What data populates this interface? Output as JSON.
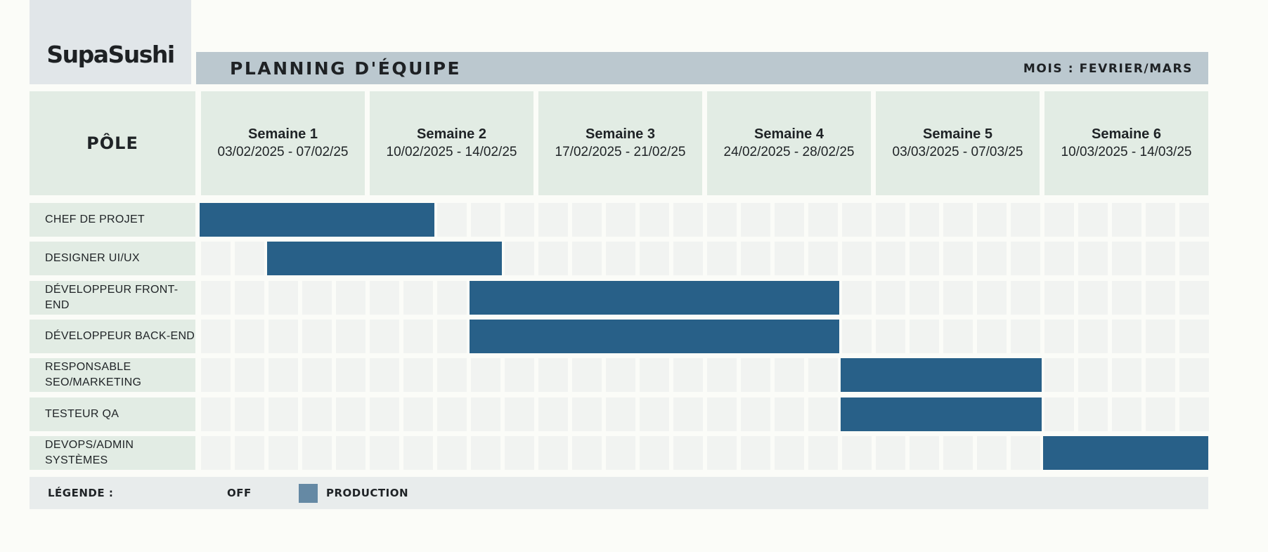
{
  "brand": {
    "logo": "SupaSushi"
  },
  "header": {
    "title": "PLANNING D'ÉQUIPE",
    "month": "MOIS : FEVRIER/MARS"
  },
  "table": {
    "pole_header": "PÔLE"
  },
  "colors": {
    "production": "#286088",
    "off": "#f1f3f1",
    "label_bg": "#e2ece4",
    "header_bar": "#bbc8cf"
  },
  "chart_data": {
    "type": "gantt",
    "categories": [
      "Semaine 1",
      "Semaine 2",
      "Semaine 3",
      "Semaine 4",
      "Semaine 5",
      "Semaine 6"
    ],
    "weeks": [
      {
        "name": "Semaine 1",
        "dates": "03/02/2025 - 07/02/25"
      },
      {
        "name": "Semaine 2",
        "dates": "10/02/2025 - 14/02/25"
      },
      {
        "name": "Semaine 3",
        "dates": "17/02/2025 - 21/02/25"
      },
      {
        "name": "Semaine 4",
        "dates": "24/02/2025 - 28/02/25"
      },
      {
        "name": "Semaine 5",
        "dates": "03/03/2025 - 07/03/25"
      },
      {
        "name": "Semaine 6",
        "dates": "10/03/2025 - 14/03/25"
      }
    ],
    "days_per_week": 5,
    "tasks": [
      {
        "role": "CHEF DE PROJET",
        "start_day": 1,
        "end_day": 7
      },
      {
        "role": "DESIGNER UI/UX",
        "start_day": 3,
        "end_day": 9
      },
      {
        "role": "DÉVELOPPEUR FRONT-END",
        "start_day": 9,
        "end_day": 19
      },
      {
        "role": "DÉVELOPPEUR BACK-END",
        "start_day": 9,
        "end_day": 19
      },
      {
        "role": "RESPONSABLE SEO/MARKETING",
        "start_day": 20,
        "end_day": 25
      },
      {
        "role": "TESTEUR QA",
        "start_day": 20,
        "end_day": 25
      },
      {
        "role": "DEVOPS/ADMIN SYSTÈMES",
        "start_day": 26,
        "end_day": 30
      }
    ],
    "legend": [
      {
        "label": "OFF",
        "color": "#e8ecec"
      },
      {
        "label": "PRODUCTION",
        "color": "#6589a4"
      }
    ],
    "legend_title": "LÉGENDE :"
  }
}
